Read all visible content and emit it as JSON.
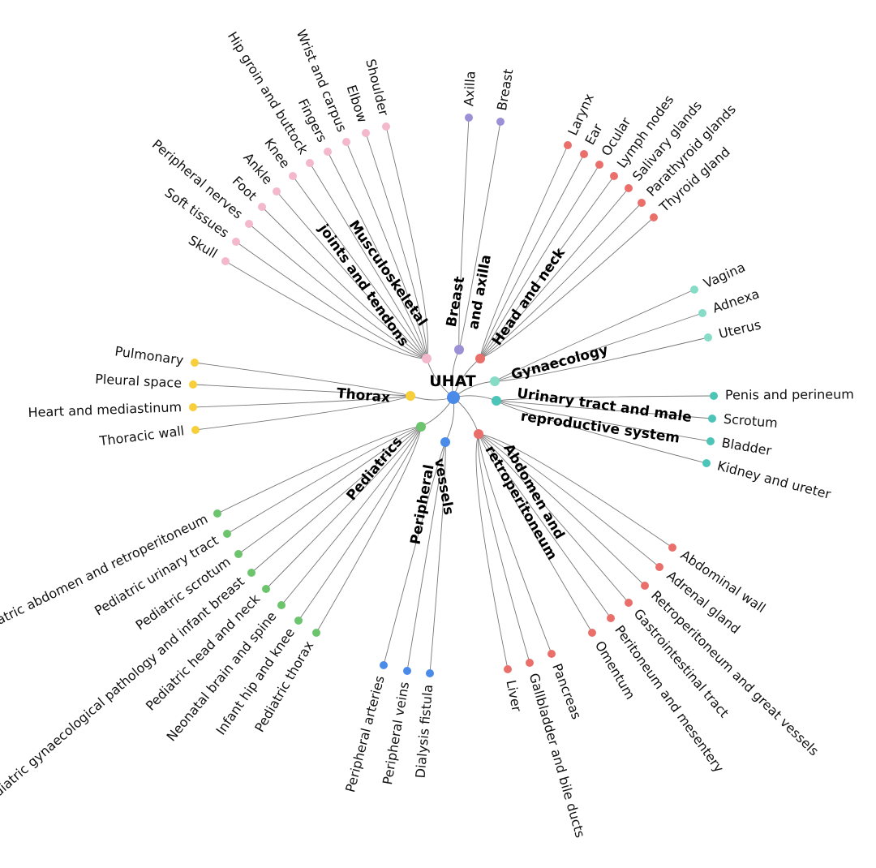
{
  "root": {
    "label": "UHAT",
    "color": "#4a8ae8"
  },
  "categories": [
    {
      "id": "msk",
      "label_lines": [
        "Musculoskeletal",
        "joints and tendons"
      ],
      "color": "#f4b8cc",
      "leaves": [
        "Skull",
        "Soft tissues",
        "Peripheral nerves",
        "Foot",
        "Ankle",
        "Knee",
        "Hip groin and buttock",
        "Fingers",
        "Wrist and carpus",
        "Elbow",
        "Shoulder"
      ]
    },
    {
      "id": "breast",
      "label_lines": [
        "Breast",
        "and axilla"
      ],
      "color": "#9b8fd6",
      "leaves": [
        "Axilla",
        "Breast"
      ]
    },
    {
      "id": "headneck",
      "label_lines": [
        "Head and neck"
      ],
      "color": "#ea6f6a",
      "leaves": [
        "Larynx",
        "Ear",
        "Ocular",
        "Lymph nodes",
        "Salivary glands",
        "Parathyroid glands",
        "Thyroid gland"
      ]
    },
    {
      "id": "gyn",
      "label_lines": [
        "Gynaecology"
      ],
      "color": "#86dcc6",
      "leaves": [
        "Vagina",
        "Adnexa",
        "Uterus"
      ]
    },
    {
      "id": "uro",
      "label_lines": [
        "Urinary tract and male",
        "reproductive system"
      ],
      "color": "#4cc4b8",
      "leaves": [
        "Penis and perineum",
        "Scrotum",
        "Bladder",
        "Kidney and ureter"
      ]
    },
    {
      "id": "abd",
      "label_lines": [
        "Abdomen and",
        "retroperitoneum"
      ],
      "color": "#ea6f6a",
      "leaves": [
        "Liver",
        "Gallbladder and bile ducts",
        "Pancreas",
        "Omentum",
        "Peritoneum and mesentery",
        "Gastrointestinal tract",
        "Retroperitoneum and great vessels",
        "Adrenal gland",
        "Abdominal wall"
      ]
    },
    {
      "id": "vessels",
      "label_lines": [
        "Peripheral",
        "vessels"
      ],
      "color": "#4a8ae8",
      "leaves": [
        "Peripheral arteries",
        "Peripheral veins",
        "Dialysis fistula"
      ]
    },
    {
      "id": "peds",
      "label_lines": [
        "Pediatrics"
      ],
      "color": "#6cc46c",
      "leaves": [
        "Pediatric abdomen and retroperitoneum",
        "Pediatric urinary tract",
        "Pediatric scrotum",
        "Pediatric gynaecological pathology and infant breast",
        "Pediatric head and neck",
        "Neonatal brain and spine",
        "Infant hip and knee",
        "Pediatric thorax"
      ]
    },
    {
      "id": "thorax",
      "label_lines": [
        "Thorax"
      ],
      "color": "#f7cf3a",
      "leaves": [
        "Pulmonary",
        "Pleural space",
        "Heart and mediastinum",
        "Thoracic wall"
      ]
    }
  ]
}
